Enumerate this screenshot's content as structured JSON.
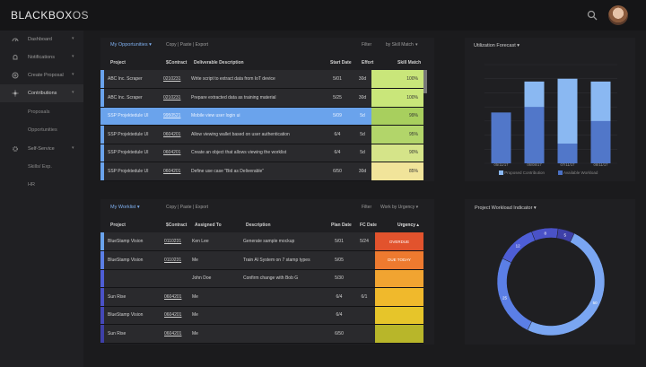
{
  "app": {
    "brand": "BLACKBOX",
    "brand_suffix": "OS",
    "search_icon": "search-icon",
    "avatar": "user-avatar"
  },
  "sidebar": {
    "items": [
      {
        "label": "Dashboard",
        "icon": "gauge-icon",
        "chevron": "▾",
        "active": false
      },
      {
        "label": "Notifications",
        "icon": "bell-icon",
        "chevron": "▾",
        "active": false
      },
      {
        "label": "Create Proposal",
        "icon": "plus-circle-icon",
        "chevron": "▾",
        "active": false
      },
      {
        "label": "Contributions",
        "icon": "sun-icon",
        "chevron": "▾",
        "active": true
      },
      {
        "label": "Self-Service",
        "icon": "gear-icon",
        "chevron": "▾",
        "active": false
      }
    ],
    "sub_contrib": [
      "Proposals",
      "Opportunities"
    ],
    "sub_self": [
      "Skills/ Exp.",
      "HR"
    ]
  },
  "opportunities": {
    "title": "My Opportunities ▾",
    "actions": "Copy | Paste | Export",
    "filter": "Filter",
    "sort": "by Skill Match",
    "columns": [
      "Project",
      "$Contract",
      "Deliverable Description",
      "Start Date",
      "Effort",
      "Skill Match"
    ],
    "rows": [
      {
        "project": "ABC Inc. Scraper",
        "contract": "0210231",
        "desc": "Write script to extract data from IoT device",
        "start": "5/01",
        "effort": "30d",
        "match": "100%",
        "match_color": "#c9e67a",
        "bar": "#6aa3ec",
        "selected": false
      },
      {
        "project": "ABC Inc. Scraper",
        "contract": "0210231",
        "desc": "Prepare extracted data as training material",
        "start": "5/25",
        "effort": "30d",
        "match": "100%",
        "match_color": "#c9e67a",
        "bar": "#6aa3ec",
        "selected": false
      },
      {
        "project": "SSP Projektedule UI",
        "contract": "9950521",
        "desc": "Mobile view user login ui",
        "start": "5/09",
        "effort": "5d",
        "match": "99%",
        "match_color": "#a8cf5e",
        "bar": "#6aa3ec",
        "selected": true
      },
      {
        "project": "SSP Projektedule UI",
        "contract": "0604201",
        "desc": "Allow viewing wallet based on user authentication",
        "start": "6/4",
        "effort": "5d",
        "match": "95%",
        "match_color": "#b2d56a",
        "bar": "#6aa3ec",
        "selected": false
      },
      {
        "project": "SSP Projektedule UI",
        "contract": "0604201",
        "desc": "Create an object that allows viewing the worklist",
        "start": "6/4",
        "effort": "5d",
        "match": "90%",
        "match_color": "#d5e489",
        "bar": "#6aa3ec",
        "selected": false
      },
      {
        "project": "SSP Projektedule UI",
        "contract": "0604201",
        "desc": "Define use case \"Bid as Deliverable\"",
        "start": "6/50",
        "effort": "30d",
        "match": "85%",
        "match_color": "#f1e49a",
        "bar": "#6aa3ec",
        "selected": false
      }
    ]
  },
  "worklist": {
    "title": "My Worklist ▾",
    "actions": "Copy | Paste | Export",
    "filter": "Filter",
    "sort": "Work by Urgency ▾",
    "columns": [
      "Project",
      "$Contract",
      "Assigned To",
      "Description",
      "Plan Date",
      "FC Date",
      "Urgency ▴"
    ],
    "rows": [
      {
        "project": "BlueStamp Vision",
        "contract": "0110231",
        "assigned": "Ken Lee",
        "desc": "Generate sample mockup",
        "plan": "5/01",
        "fc": "5/24",
        "urgency": "OVERDUE",
        "urgency_color": "#e2532d",
        "bar": "#6aa3ec"
      },
      {
        "project": "BlueStamp Vision",
        "contract": "0110231",
        "assigned": "Me",
        "desc": "Train AI System on 7 stamp types",
        "plan": "5/05",
        "fc": "",
        "urgency": "DUE TODAY",
        "urgency_color": "#ee7a2f",
        "bar": "#5b7fe6"
      },
      {
        "project": "",
        "contract": "",
        "assigned": "John Doe",
        "desc": "Confirm change with Bob G",
        "plan": "5/30",
        "fc": "",
        "urgency": "",
        "urgency_color": "#f1a431",
        "bar": "#4e5ed6"
      },
      {
        "project": "Sun Rise",
        "contract": "0604201",
        "assigned": "Me",
        "desc": "",
        "plan": "6/4",
        "fc": "6/1",
        "urgency": "",
        "urgency_color": "#f0b92c",
        "bar": "#4a52c7"
      },
      {
        "project": "BlueStamp Vision",
        "contract": "0604201",
        "assigned": "Me",
        "desc": "",
        "plan": "6/4",
        "fc": "",
        "urgency": "",
        "urgency_color": "#e6c52a",
        "bar": "#4448b8"
      },
      {
        "project": "Sun Rise",
        "contract": "0604201",
        "assigned": "Me",
        "desc": "",
        "plan": "6/50",
        "fc": "",
        "urgency": "",
        "urgency_color": "#b8b62a",
        "bar": "#3e40a8"
      }
    ]
  },
  "utilization": {
    "title": "Utilization Forecast ▾",
    "legend": [
      "Proposed Contribution",
      "Available Workload"
    ],
    "colors": {
      "proposed": "#8ab8f2",
      "available": "#4a70c4"
    },
    "chart_data": {
      "type": "bar",
      "categories": [
        "05/11/17",
        "06/08/17",
        "07/11/17",
        "08/11/17"
      ],
      "series": [
        {
          "name": "Proposed Contribution",
          "values": [
            18,
            29,
            30,
            29
          ]
        },
        {
          "name": "Available Workload",
          "values": [
            18,
            20,
            7,
            15
          ]
        }
      ],
      "ylim": [
        0,
        35
      ]
    }
  },
  "workload": {
    "title": "Project Workload Indicator ▾",
    "chart_data": {
      "type": "pie",
      "style": "donut",
      "labels": [
        "50",
        "25",
        "12",
        "8",
        "5"
      ],
      "values": [
        50,
        25,
        12,
        8,
        5
      ],
      "colors": [
        "#7aa6f2",
        "#5b7fe6",
        "#4e5ed6",
        "#4a52c7",
        "#3e40a8"
      ]
    }
  }
}
